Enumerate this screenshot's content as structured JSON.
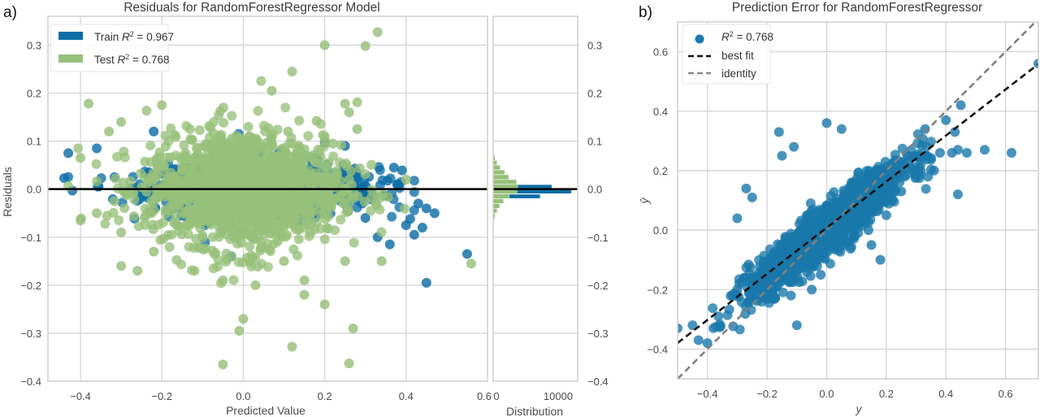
{
  "chart_data": [
    {
      "type": "scatter",
      "panel_label": "a)",
      "title": "Residuals for RandomForestRegressor Model",
      "xlabel": "Predicted Value",
      "ylabel": "Residuals",
      "xlim": [
        -0.48,
        0.6
      ],
      "ylim": [
        -0.4,
        0.36
      ],
      "xticks": [
        -0.4,
        -0.2,
        0.0,
        0.2,
        0.4,
        0.6
      ],
      "xtick_labels": [
        "−0.4",
        "−0.2",
        "0.0",
        "0.2",
        "0.4",
        "0.6"
      ],
      "yticks": [
        -0.4,
        -0.3,
        -0.2,
        -0.1,
        0.0,
        0.1,
        0.2,
        0.3
      ],
      "ytick_labels": [
        "−0.4",
        "−0.3",
        "−0.2",
        "−0.1",
        "0.0",
        "0.1",
        "0.2",
        "0.3"
      ],
      "grid": true,
      "legend_position": "top-left",
      "reference_line": {
        "y": 0.0,
        "color": "#000000"
      },
      "series": [
        {
          "name": "Train R² = 0.967",
          "label_prefix": "Train",
          "r2": "0.967",
          "color": "#0e6ea5",
          "cluster": {
            "n": 900,
            "x_mean": 0.05,
            "x_sd": 0.14,
            "y_sd": 0.022
          },
          "points": [
            [
              -0.43,
              0.075
            ],
            [
              -0.44,
              0.023
            ],
            [
              -0.42,
              -0.003
            ],
            [
              -0.36,
              0.085
            ],
            [
              -0.22,
              0.12
            ],
            [
              0.2,
              0.097
            ],
            [
              0.25,
              0.09
            ],
            [
              0.37,
              0.045
            ],
            [
              0.39,
              0.039
            ],
            [
              0.38,
              0.01
            ],
            [
              0.43,
              -0.03
            ],
            [
              0.45,
              -0.04
            ],
            [
              0.47,
              -0.05
            ],
            [
              0.3,
              -0.06
            ],
            [
              0.41,
              -0.062
            ],
            [
              0.44,
              -0.08
            ],
            [
              0.33,
              -0.1
            ],
            [
              0.55,
              -0.135
            ],
            [
              0.45,
              -0.195
            ],
            [
              0.36,
              -0.115
            ],
            [
              0.4,
              -0.075
            ],
            [
              0.42,
              -0.095
            ],
            [
              0.1,
              -0.04
            ]
          ]
        },
        {
          "name": "Test R² = 0.768",
          "label_prefix": "Test",
          "r2": "0.768",
          "color": "#97c07a",
          "cluster": {
            "n": 1400,
            "x_mean": 0.0,
            "x_sd": 0.12,
            "y_sd": 0.04
          },
          "points": [
            [
              0.33,
              0.327
            ],
            [
              0.2,
              0.3
            ],
            [
              0.3,
              0.298
            ],
            [
              0.12,
              0.245
            ],
            [
              0.07,
              0.205
            ],
            [
              0.28,
              0.181
            ],
            [
              -0.2,
              0.175
            ],
            [
              -0.38,
              0.178
            ],
            [
              0.26,
              0.16
            ],
            [
              0.25,
              0.178
            ],
            [
              0.18,
              0.142
            ],
            [
              -0.3,
              0.14
            ],
            [
              0.11,
              0.12
            ],
            [
              0.2,
              0.11
            ],
            [
              0.22,
              0.095
            ],
            [
              0.28,
              0.125
            ],
            [
              -0.4,
              0.065
            ],
            [
              -0.33,
              0.12
            ],
            [
              0.26,
              0.02
            ],
            [
              0.4,
              0.02
            ],
            [
              -0.36,
              -0.05
            ],
            [
              -0.4,
              -0.065
            ],
            [
              -0.3,
              -0.09
            ],
            [
              -0.22,
              -0.13
            ],
            [
              -0.26,
              -0.17
            ],
            [
              -0.3,
              -0.16
            ],
            [
              0.56,
              -0.155
            ],
            [
              0.03,
              -0.2
            ],
            [
              0.15,
              -0.19
            ],
            [
              0.2,
              -0.24
            ],
            [
              -0.05,
              -0.19
            ],
            [
              0.0,
              -0.27
            ],
            [
              0.15,
              -0.22
            ],
            [
              -0.01,
              -0.295
            ],
            [
              0.27,
              -0.29
            ],
            [
              0.12,
              -0.328
            ],
            [
              -0.05,
              -0.365
            ],
            [
              0.26,
              -0.363
            ],
            [
              0.34,
              -0.15
            ],
            [
              0.25,
              -0.15
            ],
            [
              0.1,
              -0.15
            ],
            [
              -0.12,
              -0.17
            ]
          ]
        }
      ],
      "marginal_histogram": {
        "xlabel": "Distribution",
        "xticks": [
          0,
          10000
        ],
        "xtick_labels": [
          "0",
          "10000"
        ],
        "xlim": [
          0,
          13000
        ],
        "bins_center": [
          0.075,
          0.065,
          0.055,
          0.045,
          0.035,
          0.025,
          0.015,
          0.005,
          -0.005,
          -0.015,
          -0.025,
          -0.035,
          -0.045,
          -0.055,
          -0.065,
          -0.075
        ],
        "train_counts": [
          0,
          0,
          0,
          0,
          0,
          0,
          2600,
          9000,
          12000,
          7200,
          0,
          0,
          0,
          0,
          0,
          0
        ],
        "test_counts": [
          100,
          300,
          600,
          1100,
          1800,
          2400,
          3600,
          3800,
          3700,
          2500,
          1600,
          1000,
          600,
          300,
          150,
          80
        ]
      }
    },
    {
      "type": "scatter",
      "panel_label": "b)",
      "title": "Prediction Error for RandomForestRegressor",
      "xlabel": "y",
      "ylabel": "ŷ",
      "xlim": [
        -0.5,
        0.71
      ],
      "ylim": [
        -0.5,
        0.7
      ],
      "xticks": [
        -0.4,
        -0.2,
        0.0,
        0.2,
        0.4,
        0.6
      ],
      "xtick_labels": [
        "−0.4",
        "−0.2",
        "0.0",
        "0.2",
        "0.4",
        "0.6"
      ],
      "yticks": [
        -0.4,
        -0.2,
        0.0,
        0.2,
        0.4,
        0.6
      ],
      "ytick_labels": [
        "−0.4",
        "−0.2",
        "0.0",
        "0.2",
        "0.4",
        "0.6"
      ],
      "grid": true,
      "legend_position": "top-left",
      "legend": [
        {
          "label": "R²  = 0.768",
          "kind": "marker"
        },
        {
          "label": "best fit",
          "kind": "dashed-black"
        },
        {
          "label": "identity",
          "kind": "dashed-gray"
        }
      ],
      "best_fit": {
        "slope": 0.775,
        "intercept": 0.008,
        "color": "#111111"
      },
      "identity": {
        "slope": 1.0,
        "intercept": 0.0,
        "color": "#808080"
      },
      "series": [
        {
          "name": "R² = 0.768",
          "color": "#1a78ab",
          "cluster": {
            "n": 1500,
            "x_mean": 0.0,
            "x_sd": 0.13,
            "slope": 0.78,
            "noise_sd": 0.04
          },
          "points": [
            [
              -0.5,
              -0.33
            ],
            [
              -0.45,
              -0.32
            ],
            [
              -0.43,
              -0.37
            ],
            [
              -0.4,
              -0.38
            ],
            [
              -0.38,
              -0.33
            ],
            [
              -0.3,
              -0.2
            ],
            [
              -0.16,
              0.33
            ],
            [
              -0.11,
              0.28
            ],
            [
              -0.15,
              0.25
            ],
            [
              -0.27,
              0.14
            ],
            [
              -0.25,
              0.11
            ],
            [
              -0.3,
              0.04
            ],
            [
              0.27,
              0.25
            ],
            [
              0.31,
              0.25
            ],
            [
              0.38,
              0.26
            ],
            [
              0.42,
              0.26
            ],
            [
              0.44,
              0.27
            ],
            [
              0.47,
              0.26
            ],
            [
              0.53,
              0.27
            ],
            [
              0.62,
              0.26
            ],
            [
              0.45,
              0.42
            ],
            [
              0.4,
              0.37
            ],
            [
              0.33,
              0.34
            ],
            [
              0.43,
              0.33
            ],
            [
              0.44,
              0.12
            ],
            [
              0.71,
              0.56
            ],
            [
              0.0,
              0.36
            ],
            [
              0.05,
              0.34
            ],
            [
              0.3,
              0.2
            ],
            [
              0.36,
              0.2
            ],
            [
              0.34,
              0.18
            ],
            [
              0.15,
              -0.05
            ],
            [
              0.18,
              -0.1
            ],
            [
              0.14,
              0.0
            ],
            [
              -0.1,
              -0.32
            ],
            [
              -0.12,
              -0.22
            ],
            [
              -0.05,
              -0.2
            ],
            [
              -0.02,
              -0.15
            ],
            [
              0.25,
              0.13
            ],
            [
              0.22,
              0.1
            ],
            [
              0.2,
              0.05
            ]
          ]
        }
      ]
    }
  ]
}
